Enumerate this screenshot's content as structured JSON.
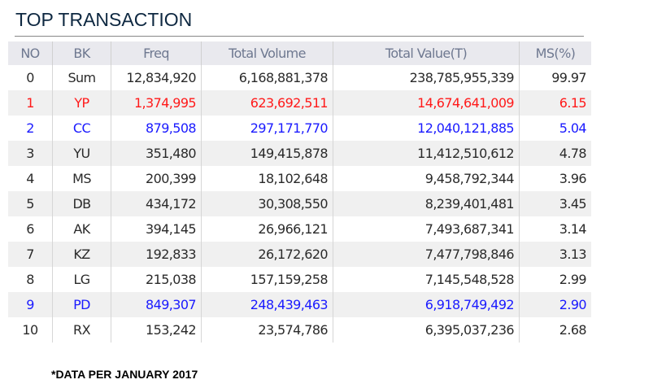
{
  "title": "TOP TRANSACTION",
  "columns": [
    "NO",
    "BK",
    "Freq",
    "Total Volume",
    "Total Value(T)",
    "MS(%)"
  ],
  "rows": [
    {
      "no": "0",
      "bk": "Sum",
      "freq": "12,834,920",
      "volume": "6,168,881,378",
      "value": "238,785,955,339",
      "ms": "99.97",
      "color": "default"
    },
    {
      "no": "1",
      "bk": "YP",
      "freq": "1,374,995",
      "volume": "623,692,511",
      "value": "14,674,641,009",
      "ms": "6.15",
      "color": "red"
    },
    {
      "no": "2",
      "bk": "CC",
      "freq": "879,508",
      "volume": "297,171,770",
      "value": "12,040,121,885",
      "ms": "5.04",
      "color": "blue"
    },
    {
      "no": "3",
      "bk": "YU",
      "freq": "351,480",
      "volume": "149,415,878",
      "value": "11,412,510,612",
      "ms": "4.78",
      "color": "default"
    },
    {
      "no": "4",
      "bk": "MS",
      "freq": "200,399",
      "volume": "18,102,648",
      "value": "9,458,792,344",
      "ms": "3.96",
      "color": "default"
    },
    {
      "no": "5",
      "bk": "DB",
      "freq": "434,172",
      "volume": "30,308,550",
      "value": "8,239,401,481",
      "ms": "3.45",
      "color": "default"
    },
    {
      "no": "6",
      "bk": "AK",
      "freq": "394,145",
      "volume": "26,966,121",
      "value": "7,493,687,341",
      "ms": "3.14",
      "color": "default"
    },
    {
      "no": "7",
      "bk": "KZ",
      "freq": "192,833",
      "volume": "26,172,620",
      "value": "7,477,798,846",
      "ms": "3.13",
      "color": "default"
    },
    {
      "no": "8",
      "bk": "LG",
      "freq": "215,038",
      "volume": "157,159,258",
      "value": "7,145,548,528",
      "ms": "2.99",
      "color": "default"
    },
    {
      "no": "9",
      "bk": "PD",
      "freq": "849,307",
      "volume": "248,439,463",
      "value": "6,918,749,492",
      "ms": "2.90",
      "color": "blue"
    },
    {
      "no": "10",
      "bk": "RX",
      "freq": "153,242",
      "volume": "23,574,786",
      "value": "6,395,037,236",
      "ms": "2.68",
      "color": "default"
    }
  ],
  "footnote": "*DATA PER JANUARY 2017"
}
